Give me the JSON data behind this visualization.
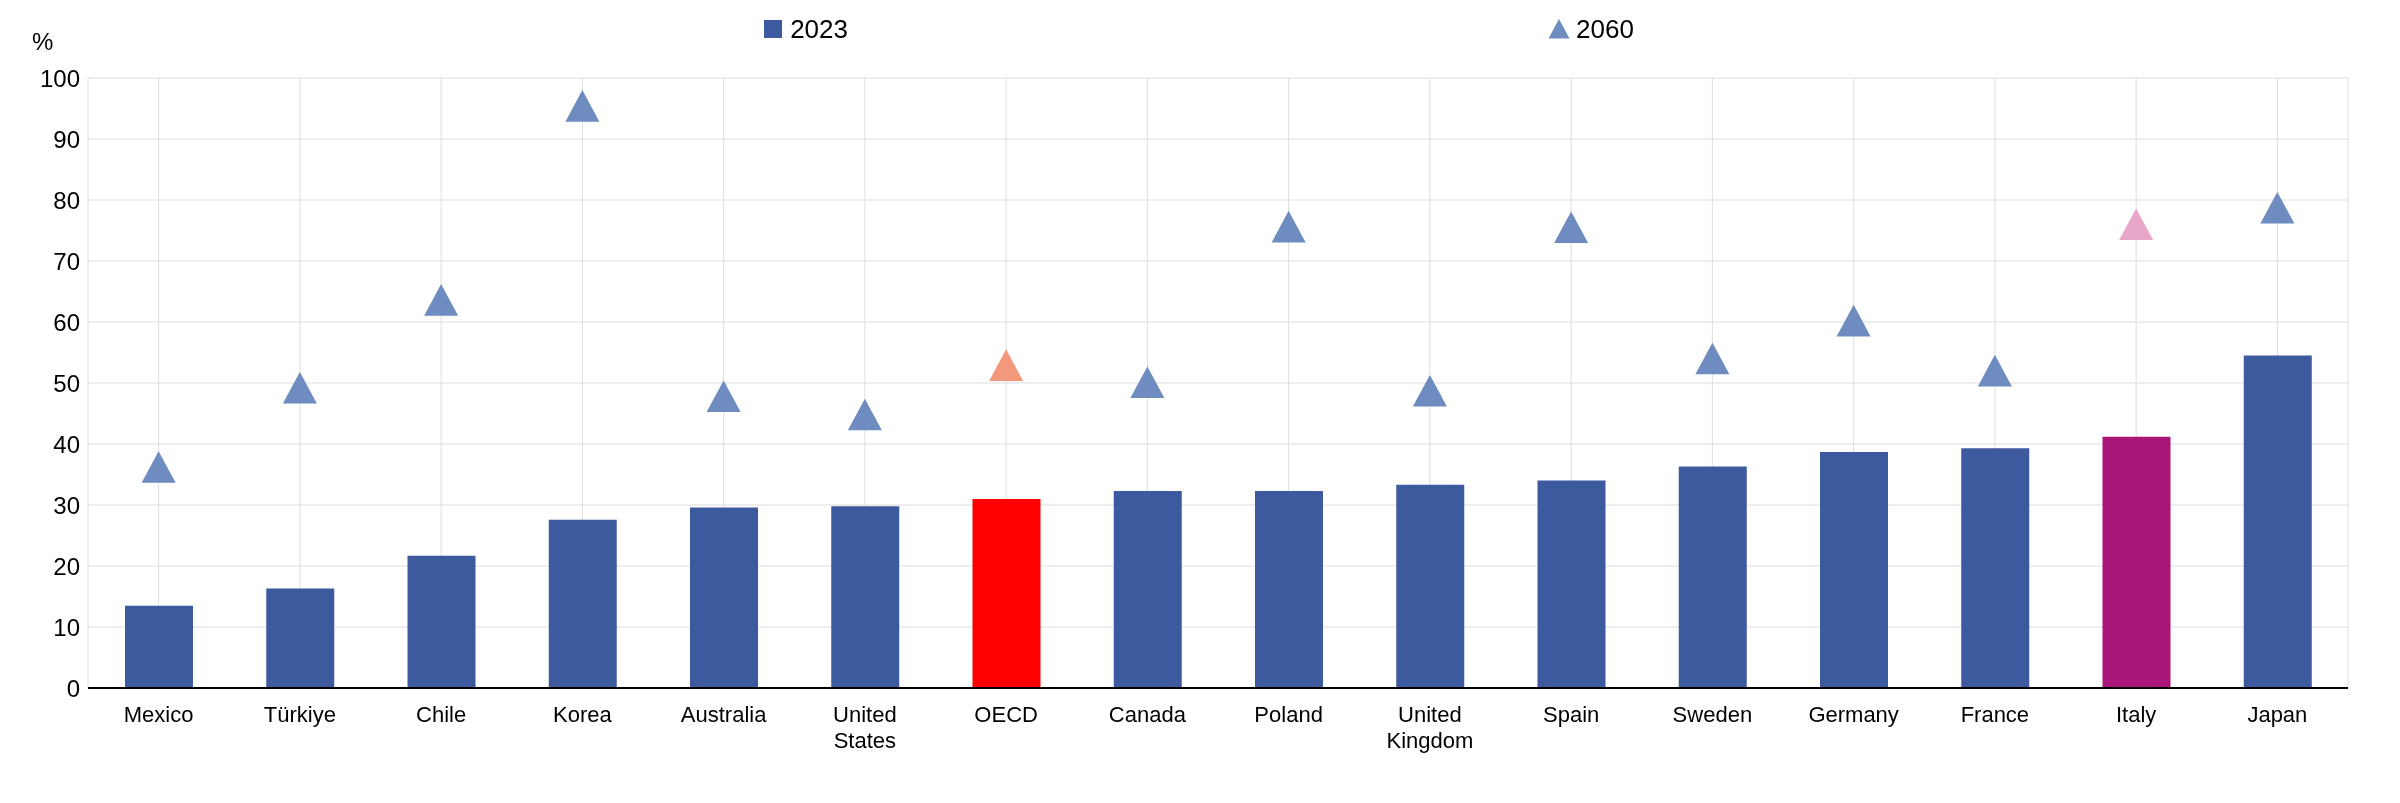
{
  "chart_data": {
    "type": "bar",
    "ylabel": "%",
    "categories": [
      "Mexico",
      "Türkiye",
      "Chile",
      "Korea",
      "Australia",
      "United States",
      "OECD",
      "Canada",
      "Poland",
      "United Kingdom",
      "Spain",
      "Sweden",
      "Germany",
      "France",
      "Italy",
      "Japan"
    ],
    "series": [
      {
        "name": "2023",
        "color": "#3c5a9d",
        "colors": [
          "#3c5a9d",
          "#3c5a9d",
          "#3c5a9d",
          "#3c5a9d",
          "#3c5a9d",
          "#3c5a9d",
          "#ff0000",
          "#3c5a9d",
          "#3c5a9d",
          "#3c5a9d",
          "#3c5a9d",
          "#3c5a9d",
          "#3c5a9d",
          "#3c5a9d",
          "#a91579",
          "#3c5a9d"
        ],
        "values": [
          13.5,
          16.3,
          21.7,
          27.6,
          29.6,
          29.8,
          31.0,
          32.3,
          32.3,
          33.3,
          34.0,
          36.3,
          38.7,
          39.3,
          41.2,
          54.5
        ]
      },
      {
        "name": "2060",
        "type": "scatter",
        "marker": "triangle",
        "color": "#6f8cc0",
        "colors": [
          "#6f8cc0",
          "#6f8cc0",
          "#6f8cc0",
          "#6f8cc0",
          "#6f8cc0",
          "#6f8cc0",
          "#f4987b",
          "#6f8cc0",
          "#6f8cc0",
          "#6f8cc0",
          "#6f8cc0",
          "#6f8cc0",
          "#6f8cc0",
          "#6f8cc0",
          "#e8a7c8",
          "#6f8cc0"
        ],
        "values": [
          36.1,
          49.1,
          63.5,
          95.3,
          47.7,
          44.7,
          52.8,
          50.0,
          75.5,
          48.6,
          75.4,
          53.9,
          60.1,
          51.9,
          75.9,
          78.6
        ]
      }
    ],
    "ylim": [
      0,
      100
    ],
    "yticks": [
      0,
      10,
      20,
      30,
      40,
      50,
      60,
      70,
      80,
      90,
      100
    ],
    "grid": true,
    "legend": "top"
  }
}
